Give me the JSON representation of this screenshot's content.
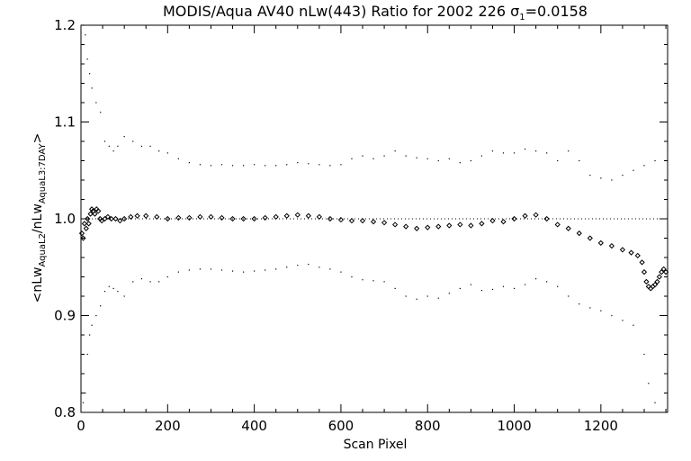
{
  "chart_data": {
    "type": "scatter",
    "title": {
      "prefix": "MODIS/Aqua AV40 nLw(443) Ratio for 2002 226 ",
      "sigma_symbol": "σ",
      "sigma_subscript": "1",
      "sigma_value": "=0.0158"
    },
    "xlabel": "Scan Pixel",
    "ylabel": {
      "open": "<nLw",
      "sub1": "AquaL2",
      "mid": "/nLw",
      "sub2": "AquaL3:7DAY",
      "close": ">"
    },
    "xlim": [
      0,
      1354
    ],
    "ylim": [
      0.8,
      1.2
    ],
    "x_ticks": [
      0,
      200,
      400,
      600,
      800,
      1000,
      1200
    ],
    "x_tick_labels": [
      "0",
      "200",
      "400",
      "600",
      "800",
      "1000",
      "1200"
    ],
    "y_ticks": [
      0.8,
      0.9,
      1.0,
      1.1,
      1.2
    ],
    "y_tick_labels": [
      "0.8",
      "0.9",
      "1.0",
      "1.1",
      "1.2"
    ],
    "reference_line": 1.0,
    "series": [
      {
        "role": "mean ratio",
        "marker": "diamond",
        "points": [
          [
            2,
            0.985
          ],
          [
            5,
            0.98
          ],
          [
            8,
            0.995
          ],
          [
            12,
            0.99
          ],
          [
            15,
            1.0
          ],
          [
            18,
            0.995
          ],
          [
            22,
            1.005
          ],
          [
            25,
            1.01
          ],
          [
            28,
            1.008
          ],
          [
            32,
            1.005
          ],
          [
            36,
            1.01
          ],
          [
            40,
            1.008
          ],
          [
            44,
            1.0
          ],
          [
            48,
            0.998
          ],
          [
            55,
            1.0
          ],
          [
            62,
            1.002
          ],
          [
            70,
            1.0
          ],
          [
            80,
            1.0
          ],
          [
            90,
            0.998
          ],
          [
            100,
            1.0
          ],
          [
            115,
            1.002
          ],
          [
            130,
            1.003
          ],
          [
            150,
            1.003
          ],
          [
            175,
            1.002
          ],
          [
            200,
            1.0
          ],
          [
            225,
            1.001
          ],
          [
            250,
            1.001
          ],
          [
            275,
            1.002
          ],
          [
            300,
            1.002
          ],
          [
            325,
            1.001
          ],
          [
            350,
            1.0
          ],
          [
            375,
            1.0
          ],
          [
            400,
            1.0
          ],
          [
            425,
            1.001
          ],
          [
            450,
            1.002
          ],
          [
            475,
            1.003
          ],
          [
            500,
            1.004
          ],
          [
            525,
            1.003
          ],
          [
            550,
            1.002
          ],
          [
            575,
            1.0
          ],
          [
            600,
            0.999
          ],
          [
            625,
            0.998
          ],
          [
            650,
            0.998
          ],
          [
            675,
            0.997
          ],
          [
            700,
            0.996
          ],
          [
            725,
            0.994
          ],
          [
            750,
            0.992
          ],
          [
            775,
            0.99
          ],
          [
            800,
            0.991
          ],
          [
            825,
            0.992
          ],
          [
            850,
            0.993
          ],
          [
            875,
            0.994
          ],
          [
            900,
            0.993
          ],
          [
            925,
            0.995
          ],
          [
            950,
            0.998
          ],
          [
            975,
            0.997
          ],
          [
            1000,
            1.0
          ],
          [
            1025,
            1.003
          ],
          [
            1050,
            1.004
          ],
          [
            1075,
            1.0
          ],
          [
            1100,
            0.994
          ],
          [
            1125,
            0.99
          ],
          [
            1150,
            0.985
          ],
          [
            1175,
            0.98
          ],
          [
            1200,
            0.975
          ],
          [
            1225,
            0.972
          ],
          [
            1250,
            0.968
          ],
          [
            1270,
            0.965
          ],
          [
            1285,
            0.962
          ],
          [
            1295,
            0.955
          ],
          [
            1300,
            0.945
          ],
          [
            1305,
            0.935
          ],
          [
            1310,
            0.93
          ],
          [
            1315,
            0.928
          ],
          [
            1320,
            0.93
          ],
          [
            1325,
            0.932
          ],
          [
            1330,
            0.935
          ],
          [
            1335,
            0.94
          ],
          [
            1340,
            0.945
          ],
          [
            1345,
            0.948
          ],
          [
            1350,
            0.945
          ]
        ]
      },
      {
        "role": "upper envelope",
        "marker": "dot",
        "points": [
          [
            5,
            1.2
          ],
          [
            10,
            1.19
          ],
          [
            15,
            1.165
          ],
          [
            20,
            1.15
          ],
          [
            25,
            1.135
          ],
          [
            35,
            1.12
          ],
          [
            45,
            1.11
          ],
          [
            55,
            1.08
          ],
          [
            65,
            1.075
          ],
          [
            75,
            1.07
          ],
          [
            85,
            1.075
          ],
          [
            100,
            1.085
          ],
          [
            120,
            1.08
          ],
          [
            140,
            1.075
          ],
          [
            160,
            1.075
          ],
          [
            180,
            1.07
          ],
          [
            200,
            1.068
          ],
          [
            225,
            1.062
          ],
          [
            250,
            1.058
          ],
          [
            275,
            1.056
          ],
          [
            300,
            1.055
          ],
          [
            325,
            1.056
          ],
          [
            350,
            1.055
          ],
          [
            375,
            1.055
          ],
          [
            400,
            1.056
          ],
          [
            425,
            1.055
          ],
          [
            450,
            1.055
          ],
          [
            475,
            1.056
          ],
          [
            500,
            1.058
          ],
          [
            525,
            1.057
          ],
          [
            550,
            1.056
          ],
          [
            575,
            1.055
          ],
          [
            600,
            1.056
          ],
          [
            625,
            1.062
          ],
          [
            650,
            1.065
          ],
          [
            675,
            1.062
          ],
          [
            700,
            1.065
          ],
          [
            725,
            1.07
          ],
          [
            750,
            1.065
          ],
          [
            775,
            1.063
          ],
          [
            800,
            1.062
          ],
          [
            825,
            1.06
          ],
          [
            850,
            1.062
          ],
          [
            875,
            1.058
          ],
          [
            900,
            1.06
          ],
          [
            925,
            1.065
          ],
          [
            950,
            1.07
          ],
          [
            975,
            1.068
          ],
          [
            1000,
            1.068
          ],
          [
            1025,
            1.072
          ],
          [
            1050,
            1.07
          ],
          [
            1075,
            1.068
          ],
          [
            1100,
            1.06
          ],
          [
            1125,
            1.07
          ],
          [
            1150,
            1.06
          ],
          [
            1175,
            1.045
          ],
          [
            1200,
            1.042
          ],
          [
            1225,
            1.04
          ],
          [
            1250,
            1.045
          ],
          [
            1275,
            1.05
          ],
          [
            1300,
            1.055
          ],
          [
            1325,
            1.06
          ]
        ]
      },
      {
        "role": "lower envelope",
        "marker": "dot",
        "points": [
          [
            5,
            0.81
          ],
          [
            10,
            0.82
          ],
          [
            15,
            0.86
          ],
          [
            20,
            0.88
          ],
          [
            25,
            0.89
          ],
          [
            35,
            0.9
          ],
          [
            45,
            0.91
          ],
          [
            55,
            0.925
          ],
          [
            65,
            0.93
          ],
          [
            75,
            0.928
          ],
          [
            85,
            0.925
          ],
          [
            100,
            0.92
          ],
          [
            120,
            0.935
          ],
          [
            140,
            0.938
          ],
          [
            160,
            0.935
          ],
          [
            180,
            0.935
          ],
          [
            200,
            0.94
          ],
          [
            225,
            0.945
          ],
          [
            250,
            0.947
          ],
          [
            275,
            0.948
          ],
          [
            300,
            0.948
          ],
          [
            325,
            0.947
          ],
          [
            350,
            0.946
          ],
          [
            375,
            0.945
          ],
          [
            400,
            0.946
          ],
          [
            425,
            0.947
          ],
          [
            450,
            0.948
          ],
          [
            475,
            0.95
          ],
          [
            500,
            0.952
          ],
          [
            525,
            0.953
          ],
          [
            550,
            0.95
          ],
          [
            575,
            0.948
          ],
          [
            600,
            0.945
          ],
          [
            625,
            0.94
          ],
          [
            650,
            0.937
          ],
          [
            675,
            0.936
          ],
          [
            700,
            0.935
          ],
          [
            725,
            0.928
          ],
          [
            750,
            0.92
          ],
          [
            775,
            0.917
          ],
          [
            800,
            0.92
          ],
          [
            825,
            0.918
          ],
          [
            850,
            0.923
          ],
          [
            875,
            0.928
          ],
          [
            900,
            0.932
          ],
          [
            925,
            0.926
          ],
          [
            950,
            0.927
          ],
          [
            975,
            0.93
          ],
          [
            1000,
            0.928
          ],
          [
            1025,
            0.932
          ],
          [
            1050,
            0.938
          ],
          [
            1075,
            0.935
          ],
          [
            1100,
            0.93
          ],
          [
            1125,
            0.92
          ],
          [
            1150,
            0.912
          ],
          [
            1175,
            0.908
          ],
          [
            1200,
            0.905
          ],
          [
            1225,
            0.9
          ],
          [
            1250,
            0.895
          ],
          [
            1275,
            0.89
          ],
          [
            1300,
            0.86
          ],
          [
            1310,
            0.83
          ],
          [
            1325,
            0.81
          ]
        ]
      }
    ]
  }
}
